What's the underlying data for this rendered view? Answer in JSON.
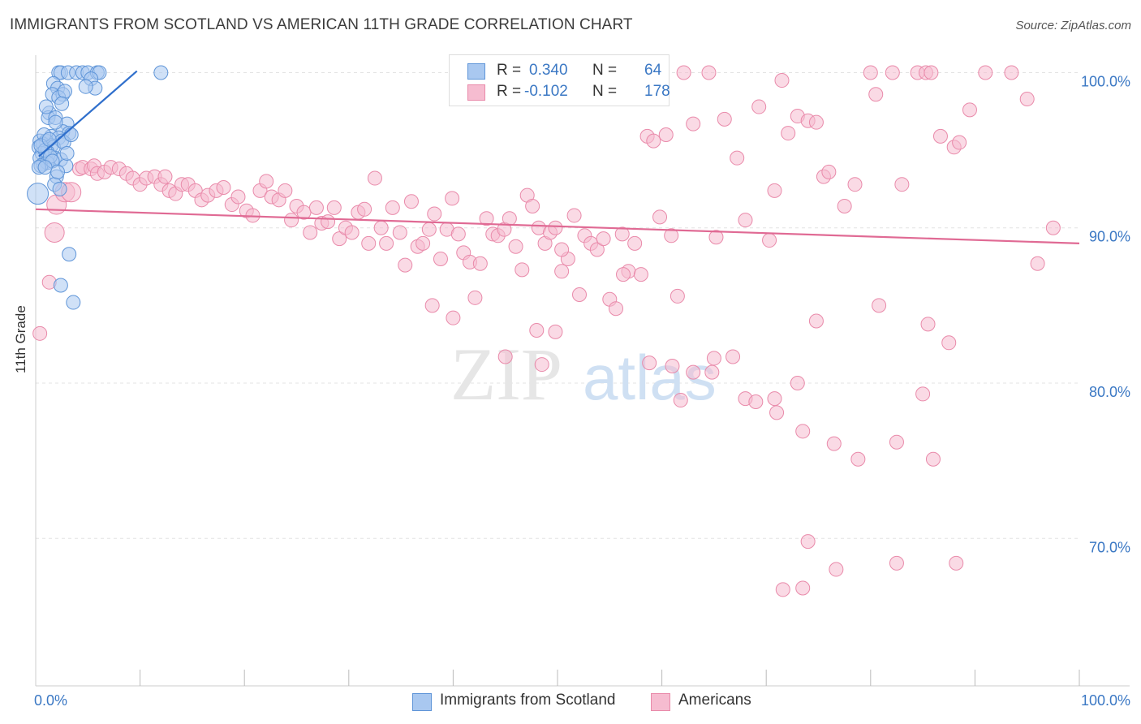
{
  "title": "IMMIGRANTS FROM SCOTLAND VS AMERICAN 11TH GRADE CORRELATION CHART",
  "source": "Source: ZipAtlas.com",
  "watermark": {
    "zip": "ZIP",
    "atlas": "atlas"
  },
  "legend": {
    "rows": [
      {
        "r_label": "R =",
        "r_value": "0.340",
        "n_label": "N =",
        "n_value": "64"
      },
      {
        "r_label": "R =",
        "r_value": "-0.102",
        "n_label": "N =",
        "n_value": "178"
      }
    ]
  },
  "bottom_legend": [
    "Immigrants from Scotland",
    "Americans"
  ],
  "colors": {
    "blue_fill": "#a9c8f0",
    "blue_stroke": "#5f95d8",
    "blue_line": "#2f6fcc",
    "pink_fill": "#f6bcd0",
    "pink_stroke": "#e98aaa",
    "pink_line": "#e06a94",
    "tick_label": "#3b78c4",
    "grid": "#e3e3e3"
  },
  "chart_data": {
    "type": "scatter",
    "title": "IMMIGRANTS FROM SCOTLAND VS AMERICAN 11TH GRADE CORRELATION CHART",
    "xlabel": "",
    "ylabel": "11th Grade",
    "xlim": [
      0,
      100
    ],
    "ylim": [
      60.5,
      100.6
    ],
    "x_tick_labels": [
      "0.0%",
      "100.0%"
    ],
    "y_ticks": [
      {
        "value": 100,
        "label": "100.0%"
      },
      {
        "value": 90,
        "label": "90.0%"
      },
      {
        "value": 80,
        "label": "80.0%"
      },
      {
        "value": 70,
        "label": "70.0%"
      }
    ],
    "grid": "horizontal dashed",
    "legend_position": "top-center",
    "series": [
      {
        "name": "Immigrants from Scotland",
        "r": 0.34,
        "n": 64,
        "trend": {
          "x": [
            0.3,
            9.7
          ],
          "y": [
            94.6,
            100.1
          ]
        },
        "points": [
          [
            2.2,
            100
          ],
          [
            2.4,
            100
          ],
          [
            3.1,
            100
          ],
          [
            3.9,
            100
          ],
          [
            4.5,
            100
          ],
          [
            5.0,
            100
          ],
          [
            5.9,
            100
          ],
          [
            6.1,
            100
          ],
          [
            12.0,
            100
          ],
          [
            5.3,
            99.6
          ],
          [
            1.7,
            99.3
          ],
          [
            2.1,
            99.0
          ],
          [
            5.7,
            99.0
          ],
          [
            1.6,
            98.6
          ],
          [
            2.6,
            98.6
          ],
          [
            2.2,
            98.4
          ],
          [
            2.8,
            98.8
          ],
          [
            1.3,
            97.4
          ],
          [
            1.2,
            97.1
          ],
          [
            1.9,
            97.1
          ],
          [
            3.0,
            96.7
          ],
          [
            2.6,
            96.2
          ],
          [
            3.2,
            96.1
          ],
          [
            1.5,
            95.9
          ],
          [
            2.2,
            95.8
          ],
          [
            0.4,
            95.6
          ],
          [
            1.0,
            95.6
          ],
          [
            0.7,
            95.4
          ],
          [
            1.5,
            95.3
          ],
          [
            2.5,
            95.6
          ],
          [
            0.3,
            95.2
          ],
          [
            1.7,
            95.2
          ],
          [
            1.1,
            94.9
          ],
          [
            0.6,
            94.8
          ],
          [
            0.4,
            94.5
          ],
          [
            1.8,
            94.5
          ],
          [
            2.4,
            94.4
          ],
          [
            0.7,
            94.1
          ],
          [
            1.1,
            94.2
          ],
          [
            0.5,
            94.0
          ],
          [
            0.3,
            93.9
          ],
          [
            2.0,
            93.3
          ],
          [
            1.8,
            92.8
          ],
          [
            0.2,
            92.2
          ],
          [
            2.3,
            92.5
          ],
          [
            3.2,
            88.3
          ],
          [
            2.4,
            86.3
          ],
          [
            3.6,
            85.2
          ],
          [
            0.9,
            95.0
          ],
          [
            1.4,
            94.6
          ],
          [
            2.9,
            94.0
          ],
          [
            0.8,
            96.0
          ],
          [
            1.9,
            96.8
          ],
          [
            2.7,
            95.5
          ],
          [
            1.0,
            97.8
          ],
          [
            3.4,
            96.0
          ],
          [
            0.5,
            95.3
          ],
          [
            1.6,
            94.3
          ],
          [
            2.1,
            93.6
          ],
          [
            0.9,
            93.9
          ],
          [
            4.8,
            99.1
          ],
          [
            1.3,
            95.7
          ],
          [
            2.5,
            98.0
          ],
          [
            3.0,
            94.8
          ]
        ]
      },
      {
        "name": "Americans",
        "r": -0.102,
        "n": 178,
        "trend": {
          "x": [
            0,
            100
          ],
          "y": [
            91.2,
            89.0
          ]
        },
        "points": [
          [
            0.4,
            83.2
          ],
          [
            1.3,
            86.5
          ],
          [
            1.8,
            89.7
          ],
          [
            2.0,
            91.5
          ],
          [
            2.8,
            92.3
          ],
          [
            3.4,
            92.3
          ],
          [
            4.2,
            93.8
          ],
          [
            4.5,
            93.9
          ],
          [
            5.3,
            93.8
          ],
          [
            5.6,
            94.0
          ],
          [
            5.9,
            93.5
          ],
          [
            6.6,
            93.6
          ],
          [
            7.2,
            93.9
          ],
          [
            8.0,
            93.8
          ],
          [
            8.7,
            93.5
          ],
          [
            9.3,
            93.2
          ],
          [
            10.0,
            92.8
          ],
          [
            10.6,
            93.2
          ],
          [
            11.4,
            93.3
          ],
          [
            12.0,
            92.8
          ],
          [
            12.4,
            93.3
          ],
          [
            12.8,
            92.4
          ],
          [
            13.4,
            92.2
          ],
          [
            14.0,
            92.8
          ],
          [
            14.6,
            92.8
          ],
          [
            15.3,
            92.4
          ],
          [
            15.9,
            91.8
          ],
          [
            16.5,
            92.1
          ],
          [
            17.3,
            92.4
          ],
          [
            18.0,
            92.6
          ],
          [
            18.8,
            91.5
          ],
          [
            19.4,
            92.0
          ],
          [
            20.2,
            91.1
          ],
          [
            20.8,
            90.8
          ],
          [
            21.5,
            92.4
          ],
          [
            22.1,
            93.0
          ],
          [
            22.6,
            92.0
          ],
          [
            23.3,
            91.8
          ],
          [
            23.9,
            92.4
          ],
          [
            24.5,
            90.5
          ],
          [
            25.0,
            91.4
          ],
          [
            25.7,
            91.0
          ],
          [
            26.3,
            89.7
          ],
          [
            26.9,
            91.3
          ],
          [
            27.4,
            90.3
          ],
          [
            28.0,
            90.4
          ],
          [
            28.6,
            91.3
          ],
          [
            29.1,
            89.3
          ],
          [
            29.7,
            90.0
          ],
          [
            30.3,
            89.7
          ],
          [
            30.9,
            91.0
          ],
          [
            31.5,
            91.2
          ],
          [
            31.9,
            89.0
          ],
          [
            32.5,
            93.2
          ],
          [
            33.1,
            90.0
          ],
          [
            33.6,
            89.0
          ],
          [
            34.2,
            91.3
          ],
          [
            34.9,
            89.7
          ],
          [
            35.4,
            87.6
          ],
          [
            36.0,
            91.7
          ],
          [
            36.6,
            88.8
          ],
          [
            37.1,
            89.0
          ],
          [
            37.7,
            89.9
          ],
          [
            38.2,
            90.9
          ],
          [
            38.8,
            88.0
          ],
          [
            39.4,
            89.9
          ],
          [
            39.9,
            91.9
          ],
          [
            40.5,
            89.6
          ],
          [
            41.0,
            88.4
          ],
          [
            41.6,
            87.8
          ],
          [
            42.1,
            85.5
          ],
          [
            42.6,
            87.7
          ],
          [
            43.2,
            90.6
          ],
          [
            43.8,
            89.6
          ],
          [
            44.3,
            89.5
          ],
          [
            44.9,
            89.9
          ],
          [
            45.4,
            90.6
          ],
          [
            46.0,
            88.8
          ],
          [
            46.6,
            87.3
          ],
          [
            47.1,
            92.1
          ],
          [
            47.6,
            91.4
          ],
          [
            48.2,
            90.0
          ],
          [
            48.8,
            89.0
          ],
          [
            49.3,
            89.7
          ],
          [
            49.8,
            90.0
          ],
          [
            50.4,
            87.2
          ],
          [
            51.0,
            88.0
          ],
          [
            51.6,
            90.8
          ],
          [
            52.1,
            85.7
          ],
          [
            52.6,
            89.5
          ],
          [
            53.2,
            89.0
          ],
          [
            53.8,
            88.6
          ],
          [
            54.4,
            89.3
          ],
          [
            55.0,
            85.4
          ],
          [
            55.6,
            84.8
          ],
          [
            56.2,
            89.6
          ],
          [
            56.8,
            87.2
          ],
          [
            57.4,
            89.0
          ],
          [
            58.0,
            87.0
          ],
          [
            58.6,
            95.9
          ],
          [
            59.2,
            95.6
          ],
          [
            59.8,
            90.7
          ],
          [
            60.4,
            96.0
          ],
          [
            60.9,
            89.5
          ],
          [
            61.5,
            85.6
          ],
          [
            62.1,
            100
          ],
          [
            63.0,
            96.7
          ],
          [
            64.5,
            100
          ],
          [
            65.2,
            89.4
          ],
          [
            66.0,
            97.0
          ],
          [
            67.2,
            94.5
          ],
          [
            68.0,
            90.5
          ],
          [
            69.3,
            97.8
          ],
          [
            70.3,
            89.2
          ],
          [
            70.8,
            92.4
          ],
          [
            71.5,
            99.5
          ],
          [
            72.1,
            96.1
          ],
          [
            73.0,
            97.2
          ],
          [
            74.0,
            96.9
          ],
          [
            74.8,
            96.8
          ],
          [
            75.5,
            93.3
          ],
          [
            76.0,
            93.6
          ],
          [
            77.5,
            91.4
          ],
          [
            78.5,
            92.8
          ],
          [
            80.0,
            100
          ],
          [
            80.5,
            98.6
          ],
          [
            82.1,
            100
          ],
          [
            83.0,
            92.8
          ],
          [
            84.5,
            100
          ],
          [
            85.3,
            100
          ],
          [
            85.8,
            100
          ],
          [
            86.7,
            95.9
          ],
          [
            88.0,
            95.2
          ],
          [
            88.5,
            95.5
          ],
          [
            89.5,
            97.6
          ],
          [
            91.0,
            100
          ],
          [
            93.5,
            100
          ],
          [
            95.0,
            98.3
          ],
          [
            96.0,
            87.7
          ],
          [
            97.5,
            90.0
          ],
          [
            38.0,
            85.0
          ],
          [
            40.0,
            84.2
          ],
          [
            45.0,
            81.7
          ],
          [
            48.0,
            83.4
          ],
          [
            49.8,
            83.3
          ],
          [
            58.8,
            81.3
          ],
          [
            61.0,
            81.1
          ],
          [
            63.0,
            80.7
          ],
          [
            65.0,
            81.6
          ],
          [
            68.0,
            79.0
          ],
          [
            69.0,
            78.8
          ],
          [
            71.0,
            78.1
          ],
          [
            73.5,
            76.9
          ],
          [
            76.5,
            76.1
          ],
          [
            78.8,
            75.1
          ],
          [
            82.5,
            76.2
          ],
          [
            85.0,
            79.3
          ],
          [
            86.0,
            75.1
          ],
          [
            87.5,
            82.6
          ],
          [
            85.5,
            83.8
          ],
          [
            74.0,
            69.8
          ],
          [
            76.7,
            68.0
          ],
          [
            73.5,
            66.8
          ],
          [
            71.6,
            66.7
          ],
          [
            82.5,
            68.4
          ],
          [
            88.2,
            68.4
          ],
          [
            48.5,
            81.2
          ],
          [
            50.4,
            88.6
          ],
          [
            56.3,
            87.0
          ],
          [
            61.8,
            78.9
          ],
          [
            64.8,
            80.7
          ],
          [
            66.8,
            81.7
          ],
          [
            70.8,
            79.0
          ],
          [
            73.0,
            80.0
          ],
          [
            74.8,
            84.0
          ],
          [
            80.8,
            85.0
          ]
        ]
      }
    ]
  }
}
